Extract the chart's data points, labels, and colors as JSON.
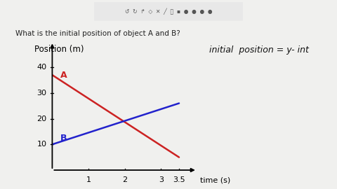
{
  "title_text": "What is the initial position of object A and B?",
  "ylabel": "Position (m)",
  "xlabel": "time (s)",
  "yticks": [
    10,
    20,
    30,
    40
  ],
  "xticks": [
    1,
    2,
    3,
    3.5
  ],
  "xtick_labels": [
    "1",
    "2",
    "3",
    "3.5"
  ],
  "xlim": [
    0,
    4.0
  ],
  "ylim": [
    0,
    50
  ],
  "line_A": {
    "x": [
      0,
      3.5
    ],
    "y": [
      37,
      5
    ],
    "color": "#cc2222",
    "label": "A"
  },
  "line_B": {
    "x": [
      0,
      3.5
    ],
    "y": [
      10,
      26
    ],
    "color": "#2222cc",
    "label": "B"
  },
  "annotation_right": "initial  position = y- int",
  "bg_color": "#f0f0ee",
  "toolbar_bg": "#1a1a1a",
  "toolbar_light_bg": "#e8e8e8"
}
